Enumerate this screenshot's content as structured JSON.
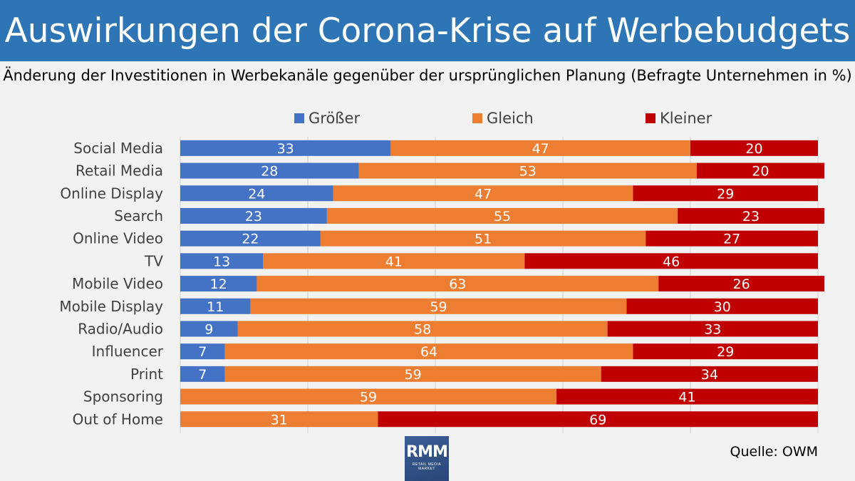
{
  "header": {
    "title": "Auswirkungen der Corona-Krise auf Werbebudgets",
    "subtitle": "Änderung der Investitionen in Werbekanäle gegenüber der ursprünglichen Planung (Befragte Unternehmen in %)"
  },
  "source": "Quelle: OWM",
  "logo": {
    "mark": "RMM",
    "sub": "RETAIL MEDIA MARKET"
  },
  "colors": {
    "groesser": "#4472c4",
    "gleich": "#ed7d31",
    "kleiner": "#c00000"
  },
  "chart_data": {
    "type": "bar",
    "orientation": "horizontal",
    "stacked": true,
    "categories": [
      "Social Media",
      "Retail Media",
      "Online Display",
      "Search",
      "Online Video",
      "TV",
      "Mobile Video",
      "Mobile Display",
      "Radio/Audio",
      "Influencer",
      "Print",
      "Sponsoring",
      "Out of Home"
    ],
    "series": [
      {
        "name": "Größer",
        "color": "#4472c4",
        "values": [
          33,
          28,
          24,
          23,
          22,
          13,
          12,
          11,
          9,
          7,
          7,
          0,
          0
        ]
      },
      {
        "name": "Gleich",
        "color": "#ed7d31",
        "values": [
          47,
          53,
          47,
          55,
          51,
          41,
          63,
          59,
          58,
          64,
          59,
          59,
          31
        ]
      },
      {
        "name": "Kleiner",
        "color": "#c00000",
        "values": [
          20,
          20,
          29,
          23,
          27,
          46,
          26,
          30,
          33,
          29,
          34,
          41,
          69
        ]
      }
    ],
    "xlim": [
      0,
      100
    ],
    "grid": true,
    "legend": "top",
    "data_labels": true
  }
}
